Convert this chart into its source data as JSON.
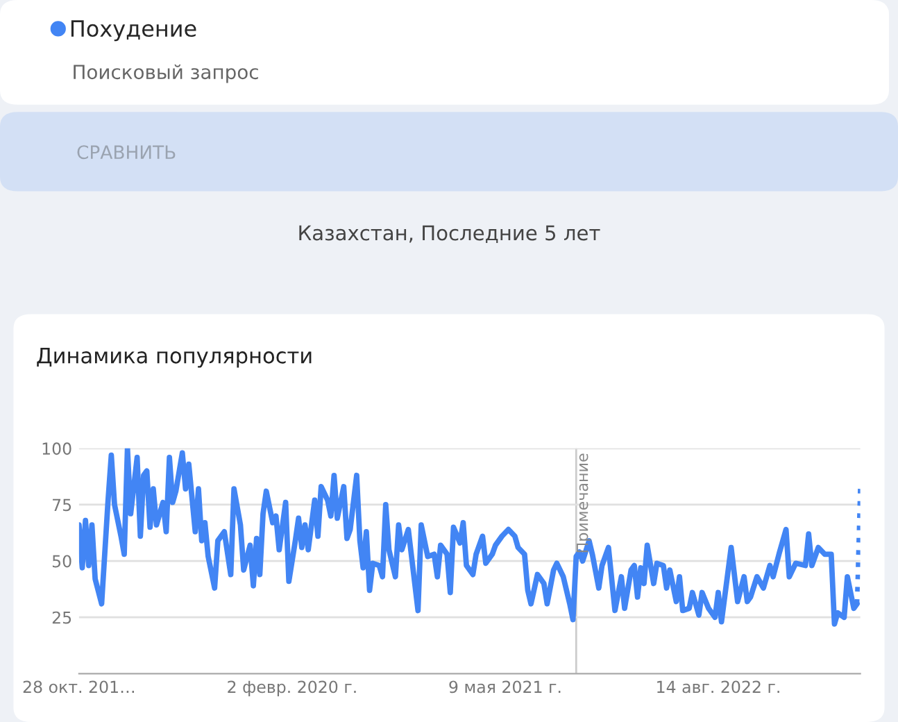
{
  "chart_data": {
    "type": "line",
    "title": "Динамика популярности",
    "subtitle": "Казахстан, Последние 5 лет",
    "annotations": [
      "Поисковый запрос",
      "СРАВНИТЬ"
    ],
    "xlim": [
      "2018-10-28",
      "2023-06-18"
    ],
    "xticks": [
      {
        "value": "2018-10-28",
        "label": "28 окт. 201…"
      },
      {
        "value": "2020-02-02",
        "label": "2 февр. 2020 г."
      },
      {
        "value": "2021-05-09",
        "label": "9 мая 2021 г."
      },
      {
        "value": "2022-08-14",
        "label": "14 авг. 2022 г."
      }
    ],
    "ylim": [
      0,
      100
    ],
    "yticks": [
      25,
      50,
      75,
      100
    ],
    "grid": "y",
    "legend": "top left",
    "ref_lines": [
      {
        "axis": "x",
        "value": "2021-10-10",
        "label": "Примечание",
        "color": "#cccccc"
      }
    ],
    "series": [
      {
        "name": "Похудение",
        "color": "#4285f4",
        "line_style": "solid",
        "x": [
          "2018-10-28",
          "2018-11-04",
          "2018-11-11",
          "2018-11-18",
          "2018-11-25",
          "2018-12-02",
          "2018-12-16",
          "2018-12-30",
          "2019-01-06",
          "2019-01-13",
          "2019-01-27",
          "2019-02-03",
          "2019-02-10",
          "2019-02-17",
          "2019-03-03",
          "2019-03-10",
          "2019-03-17",
          "2019-03-24",
          "2019-03-31",
          "2019-04-07",
          "2019-04-14",
          "2019-04-21",
          "2019-04-28",
          "2019-05-05",
          "2019-05-12",
          "2019-05-19",
          "2019-05-26",
          "2019-06-09",
          "2019-06-16",
          "2019-06-23",
          "2019-07-07",
          "2019-07-14",
          "2019-07-21",
          "2019-07-28",
          "2019-08-04",
          "2019-08-18",
          "2019-08-25",
          "2019-09-08",
          "2019-09-22",
          "2019-09-29",
          "2019-10-13",
          "2019-10-20",
          "2019-11-03",
          "2019-11-10",
          "2019-11-17",
          "2019-11-24",
          "2019-12-01",
          "2019-12-08",
          "2019-12-22",
          "2019-12-29",
          "2020-01-05",
          "2020-01-19",
          "2020-01-26",
          "2020-02-09",
          "2020-02-16",
          "2020-02-23",
          "2020-03-01",
          "2020-03-08",
          "2020-03-22",
          "2020-03-29",
          "2020-04-05",
          "2020-04-19",
          "2020-04-26",
          "2020-05-03",
          "2020-05-10",
          "2020-05-24",
          "2020-05-31",
          "2020-06-07",
          "2020-06-21",
          "2020-06-28",
          "2020-07-05",
          "2020-07-12",
          "2020-07-19",
          "2020-07-26",
          "2020-08-09",
          "2020-08-16",
          "2020-08-23",
          "2020-08-30",
          "2020-09-13",
          "2020-09-20",
          "2020-09-27",
          "2020-10-11",
          "2020-10-18",
          "2020-11-01",
          "2020-11-08",
          "2020-11-22",
          "2020-12-06",
          "2020-12-13",
          "2020-12-20",
          "2021-01-03",
          "2021-01-10",
          "2021-01-17",
          "2021-01-31",
          "2021-02-07",
          "2021-02-14",
          "2021-02-28",
          "2021-03-07",
          "2021-03-21",
          "2021-03-28",
          "2021-04-11",
          "2021-04-18",
          "2021-05-02",
          "2021-05-16",
          "2021-05-30",
          "2021-06-06",
          "2021-06-20",
          "2021-06-27",
          "2021-07-04",
          "2021-07-18",
          "2021-08-01",
          "2021-08-08",
          "2021-08-22",
          "2021-08-29",
          "2021-09-12",
          "2021-09-26",
          "2021-10-03",
          "2021-10-10",
          "2021-10-17",
          "2021-10-24",
          "2021-11-07",
          "2021-11-14",
          "2021-11-28",
          "2021-12-05",
          "2021-12-19",
          "2022-01-02",
          "2022-01-16",
          "2022-01-23",
          "2022-02-06",
          "2022-02-13",
          "2022-02-20",
          "2022-02-27",
          "2022-03-06",
          "2022-03-13",
          "2022-03-27",
          "2022-04-03",
          "2022-04-17",
          "2022-04-24",
          "2022-05-01",
          "2022-05-15",
          "2022-05-22",
          "2022-05-29",
          "2022-06-12",
          "2022-06-19",
          "2022-07-03",
          "2022-07-10",
          "2022-07-24",
          "2022-08-07",
          "2022-08-14",
          "2022-08-21",
          "2022-08-28",
          "2022-09-11",
          "2022-09-25",
          "2022-10-09",
          "2022-10-16",
          "2022-10-23",
          "2022-11-06",
          "2022-11-20",
          "2022-12-04",
          "2022-12-11",
          "2022-12-25",
          "2023-01-08",
          "2023-01-15",
          "2023-01-29",
          "2023-02-19",
          "2023-02-26",
          "2023-03-05",
          "2023-03-19",
          "2023-04-02",
          "2023-04-16",
          "2023-04-23",
          "2023-04-30",
          "2023-05-14",
          "2023-05-21",
          "2023-06-04",
          "2023-06-11"
        ],
        "values": [
          66,
          47,
          68,
          48,
          66,
          42,
          31,
          77,
          97,
          75,
          61,
          53,
          100,
          71,
          96,
          61,
          88,
          90,
          65,
          82,
          66,
          71,
          76,
          63,
          96,
          76,
          81,
          98,
          82,
          93,
          63,
          82,
          59,
          67,
          52,
          38,
          59,
          63,
          44,
          82,
          66,
          46,
          57,
          39,
          60,
          44,
          71,
          81,
          67,
          70,
          55,
          76,
          41,
          59,
          69,
          56,
          66,
          55,
          77,
          61,
          83,
          77,
          70,
          88,
          69,
          83,
          60,
          64,
          88,
          59,
          47,
          63,
          37,
          49,
          48,
          43,
          75,
          55,
          43,
          66,
          55,
          64,
          52,
          28,
          66,
          52,
          53,
          43,
          57,
          53,
          36,
          65,
          58,
          67,
          48,
          44,
          53,
          61,
          49,
          53,
          57,
          61,
          64,
          61,
          56,
          53,
          37,
          31,
          44,
          40,
          31,
          46,
          49,
          43,
          31,
          24,
          52,
          54,
          50,
          59,
          53,
          38,
          48,
          56,
          28,
          43,
          29,
          46,
          48,
          34,
          47,
          40,
          57,
          40,
          49,
          48,
          38,
          46,
          32,
          43,
          28,
          29,
          36,
          26,
          36,
          29,
          25,
          36,
          23,
          34,
          56,
          32,
          43,
          32,
          34,
          43,
          38,
          48,
          43,
          54,
          64,
          43,
          49,
          48,
          62,
          48,
          56,
          53,
          53,
          22,
          27,
          25,
          43,
          29,
          31
        ]
      },
      {
        "color": "#4285f4",
        "line_style": "dotted",
        "x": [
          "2023-06-11",
          "2023-06-18"
        ],
        "values": [
          31,
          84
        ]
      }
    ]
  }
}
